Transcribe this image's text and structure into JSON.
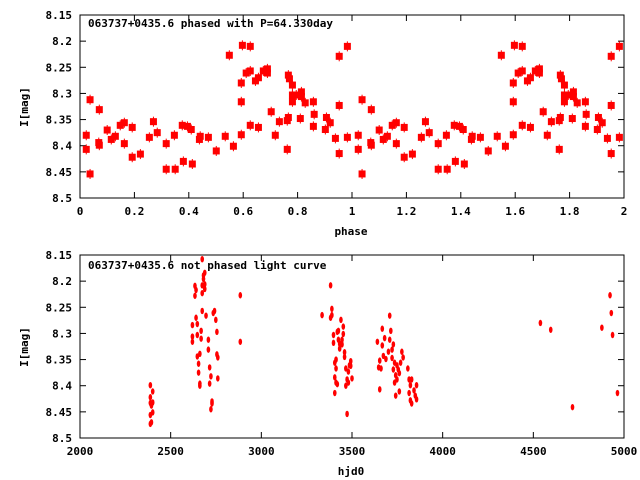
{
  "colors": {
    "points": "#ff0000",
    "axes": "#000000",
    "background": "#ffffff"
  },
  "chart_data": [
    {
      "type": "scatter",
      "title": "063737+0435.6 phased with P=64.330day",
      "xlabel": "phase",
      "ylabel": "I[mag]",
      "xlim": [
        0,
        2
      ],
      "ylim": [
        8.15,
        8.5
      ],
      "y_inverted": true,
      "xticks": [
        "0",
        "0.2",
        "0.4",
        "0.6",
        "0.8",
        "1",
        "1.2",
        "1.4",
        "1.6",
        "1.8",
        "2"
      ],
      "yticks": [
        "8.15",
        "8.2",
        "8.25",
        "8.3",
        "8.35",
        "8.4",
        "8.45",
        "8.5"
      ],
      "grid": false,
      "note": "points repeated at phase+1",
      "points": [
        [
          0.023,
          8.38
        ],
        [
          0.023,
          8.407
        ],
        [
          0.037,
          8.312
        ],
        [
          0.037,
          8.454
        ],
        [
          0.071,
          8.331
        ],
        [
          0.069,
          8.394
        ],
        [
          0.071,
          8.399
        ],
        [
          0.1,
          8.37
        ],
        [
          0.115,
          8.388
        ],
        [
          0.13,
          8.382
        ],
        [
          0.148,
          8.361
        ],
        [
          0.163,
          8.356
        ],
        [
          0.163,
          8.396
        ],
        [
          0.192,
          8.365
        ],
        [
          0.192,
          8.422
        ],
        [
          0.222,
          8.416
        ],
        [
          0.255,
          8.384
        ],
        [
          0.27,
          8.354
        ],
        [
          0.284,
          8.375
        ],
        [
          0.317,
          8.396
        ],
        [
          0.317,
          8.445
        ],
        [
          0.347,
          8.38
        ],
        [
          0.35,
          8.445
        ],
        [
          0.376,
          8.361
        ],
        [
          0.38,
          8.43
        ],
        [
          0.395,
          8.363
        ],
        [
          0.409,
          8.369
        ],
        [
          0.413,
          8.435
        ],
        [
          0.439,
          8.388
        ],
        [
          0.442,
          8.382
        ],
        [
          0.472,
          8.384
        ],
        [
          0.501,
          8.41
        ],
        [
          0.534,
          8.382
        ],
        [
          0.549,
          8.227
        ],
        [
          0.564,
          8.401
        ],
        [
          0.593,
          8.379
        ],
        [
          0.593,
          8.316
        ],
        [
          0.593,
          8.28
        ],
        [
          0.597,
          8.208
        ],
        [
          0.611,
          8.261
        ],
        [
          0.626,
          8.257
        ],
        [
          0.626,
          8.21
        ],
        [
          0.626,
          8.361
        ],
        [
          0.645,
          8.276
        ],
        [
          0.656,
          8.27
        ],
        [
          0.656,
          8.365
        ],
        [
          0.674,
          8.257
        ],
        [
          0.689,
          8.253
        ],
        [
          0.689,
          8.261
        ],
        [
          0.703,
          8.335
        ],
        [
          0.718,
          8.38
        ],
        [
          0.733,
          8.354
        ],
        [
          0.762,
          8.407
        ],
        [
          0.762,
          8.352
        ],
        [
          0.766,
          8.346
        ],
        [
          0.766,
          8.265
        ],
        [
          0.77,
          8.272
        ],
        [
          0.781,
          8.284
        ],
        [
          0.781,
          8.303
        ],
        [
          0.781,
          8.316
        ],
        [
          0.795,
          8.303
        ],
        [
          0.81,
          8.303
        ],
        [
          0.814,
          8.297
        ],
        [
          0.814,
          8.306
        ],
        [
          0.81,
          8.348
        ],
        [
          0.828,
          8.318
        ],
        [
          0.858,
          8.316
        ],
        [
          0.858,
          8.363
        ],
        [
          0.861,
          8.34
        ],
        [
          0.902,
          8.369
        ],
        [
          0.906,
          8.346
        ],
        [
          0.92,
          8.356
        ],
        [
          0.939,
          8.386
        ],
        [
          0.953,
          8.323
        ],
        [
          0.953,
          8.229
        ],
        [
          0.953,
          8.415
        ],
        [
          0.983,
          8.21
        ],
        [
          0.983,
          8.384
        ]
      ]
    },
    {
      "type": "scatter",
      "title": "063737+0435.6 not phased light curve",
      "xlabel": "hjd0",
      "ylabel": "I[mag]",
      "xlim": [
        2000,
        5000
      ],
      "ylim": [
        8.15,
        8.5
      ],
      "y_inverted": true,
      "xticks": [
        "2000",
        "2500",
        "3000",
        "3500",
        "4000",
        "4500",
        "5000"
      ],
      "yticks": [
        "8.15",
        "8.2",
        "8.25",
        "8.3",
        "8.35",
        "8.4",
        "8.45",
        "8.5"
      ],
      "grid": false,
      "points": [
        [
          2388,
          8.399
        ],
        [
          2388,
          8.422
        ],
        [
          2388,
          8.473
        ],
        [
          2388,
          8.456
        ],
        [
          2388,
          8.433
        ],
        [
          2394,
          8.438
        ],
        [
          2394,
          8.47
        ],
        [
          2401,
          8.411
        ],
        [
          2401,
          8.432
        ],
        [
          2401,
          8.451
        ],
        [
          2620,
          8.284
        ],
        [
          2620,
          8.306
        ],
        [
          2620,
          8.316
        ],
        [
          2634,
          8.209
        ],
        [
          2634,
          8.228
        ],
        [
          2640,
          8.217
        ],
        [
          2640,
          8.27
        ],
        [
          2647,
          8.282
        ],
        [
          2647,
          8.303
        ],
        [
          2647,
          8.344
        ],
        [
          2654,
          8.358
        ],
        [
          2654,
          8.375
        ],
        [
          2661,
          8.396
        ],
        [
          2661,
          8.4
        ],
        [
          2661,
          8.339
        ],
        [
          2668,
          8.31
        ],
        [
          2668,
          8.295
        ],
        [
          2674,
          8.257
        ],
        [
          2674,
          8.223
        ],
        [
          2674,
          8.208
        ],
        [
          2674,
          8.158
        ],
        [
          2681,
          8.189
        ],
        [
          2681,
          8.196
        ],
        [
          2688,
          8.184
        ],
        [
          2688,
          8.206
        ],
        [
          2688,
          8.215
        ],
        [
          2695,
          8.266
        ],
        [
          2708,
          8.312
        ],
        [
          2708,
          8.331
        ],
        [
          2715,
          8.365
        ],
        [
          2715,
          8.396
        ],
        [
          2722,
          8.382
        ],
        [
          2722,
          8.445
        ],
        [
          2728,
          8.43
        ],
        [
          2728,
          8.434
        ],
        [
          2735,
          8.261
        ],
        [
          2742,
          8.257
        ],
        [
          2749,
          8.274
        ],
        [
          2755,
          8.297
        ],
        [
          2755,
          8.34
        ],
        [
          2760,
          8.346
        ],
        [
          2760,
          8.386
        ],
        [
          2884,
          8.227
        ],
        [
          2884,
          8.316
        ],
        [
          3335,
          8.265
        ],
        [
          3382,
          8.208
        ],
        [
          3382,
          8.27
        ],
        [
          3389,
          8.253
        ],
        [
          3389,
          8.265
        ],
        [
          3398,
          8.303
        ],
        [
          3398,
          8.318
        ],
        [
          3405,
          8.356
        ],
        [
          3405,
          8.384
        ],
        [
          3405,
          8.414
        ],
        [
          3412,
          8.35
        ],
        [
          3412,
          8.394
        ],
        [
          3412,
          8.367
        ],
        [
          3419,
          8.297
        ],
        [
          3419,
          8.397
        ],
        [
          3425,
          8.295
        ],
        [
          3425,
          8.312
        ],
        [
          3432,
          8.32
        ],
        [
          3432,
          8.329
        ],
        [
          3439,
          8.274
        ],
        [
          3445,
          8.312
        ],
        [
          3445,
          8.321
        ],
        [
          3452,
          8.287
        ],
        [
          3452,
          8.301
        ],
        [
          3459,
          8.336
        ],
        [
          3459,
          8.345
        ],
        [
          3466,
          8.367
        ],
        [
          3466,
          8.4
        ],
        [
          3473,
          8.388
        ],
        [
          3473,
          8.454
        ],
        [
          3480,
          8.373
        ],
        [
          3480,
          8.394
        ],
        [
          3486,
          8.361
        ],
        [
          3493,
          8.353
        ],
        [
          3493,
          8.362
        ],
        [
          3500,
          8.386
        ],
        [
          3640,
          8.316
        ],
        [
          3647,
          8.365
        ],
        [
          3653,
          8.352
        ],
        [
          3653,
          8.407
        ],
        [
          3660,
          8.367
        ],
        [
          3667,
          8.323
        ],
        [
          3667,
          8.291
        ],
        [
          3673,
          8.343
        ],
        [
          3680,
          8.309
        ],
        [
          3687,
          8.349
        ],
        [
          3701,
          8.335
        ],
        [
          3708,
          8.266
        ],
        [
          3708,
          8.312
        ],
        [
          3714,
          8.295
        ],
        [
          3721,
          8.331
        ],
        [
          3721,
          8.347
        ],
        [
          3728,
          8.321
        ],
        [
          3728,
          8.369
        ],
        [
          3735,
          8.394
        ],
        [
          3735,
          8.356
        ],
        [
          3741,
          8.419
        ],
        [
          3741,
          8.38
        ],
        [
          3748,
          8.361
        ],
        [
          3748,
          8.388
        ],
        [
          3755,
          8.369
        ],
        [
          3761,
          8.411
        ],
        [
          3761,
          8.376
        ],
        [
          3768,
          8.356
        ],
        [
          3775,
          8.335
        ],
        [
          3782,
          8.346
        ],
        [
          3808,
          8.367
        ],
        [
          3815,
          8.388
        ],
        [
          3815,
          8.414
        ],
        [
          3822,
          8.428
        ],
        [
          3822,
          8.399
        ],
        [
          3829,
          8.434
        ],
        [
          3829,
          8.388
        ],
        [
          3842,
          8.409
        ],
        [
          3849,
          8.419
        ],
        [
          3856,
          8.426
        ],
        [
          3856,
          8.399
        ],
        [
          4539,
          8.28
        ],
        [
          4596,
          8.293
        ],
        [
          4716,
          8.441
        ],
        [
          4878,
          8.289
        ],
        [
          4923,
          8.227
        ],
        [
          4930,
          8.261
        ],
        [
          4937,
          8.303
        ],
        [
          4964,
          8.414
        ]
      ]
    }
  ]
}
